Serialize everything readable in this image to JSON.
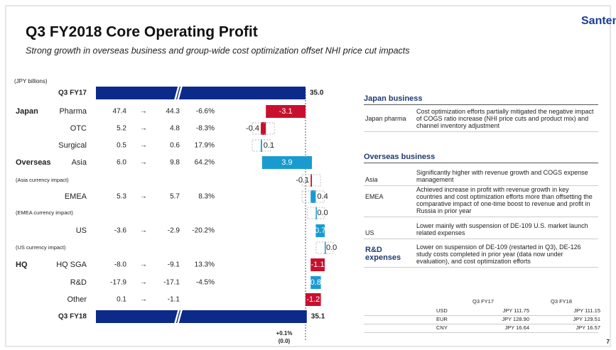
{
  "logo": "Santen",
  "title": "Q3 FY2018 Core Operating Profit",
  "subtitle": "Strong growth in overseas business and group-wide cost optimization offset NHI price cut impacts",
  "unit": "(JPY billions)",
  "start": {
    "label": "Q3 FY17",
    "value": 35,
    "value_label": "35.0"
  },
  "end": {
    "label": "Q3 FY18",
    "value": 35.1,
    "value_label": "35.1"
  },
  "rows": [
    {
      "group": "Japan",
      "label": "Pharma",
      "prev": "47.4",
      "arrow": "→",
      "curr": "44.3",
      "pct": "-6.6%",
      "change": -3.1,
      "change_label": "-3.1"
    },
    {
      "label": "OTC",
      "prev": "5.2",
      "arrow": "→",
      "curr": "4.8",
      "pct": "-8.3%",
      "change": -0.4,
      "change_label": "-0.4"
    },
    {
      "label": "Surgical",
      "prev": "0.5",
      "arrow": "→",
      "curr": "0.6",
      "pct": "17.9%",
      "change": 0.1,
      "change_label": "0.1"
    },
    {
      "group": "Overseas",
      "label": "Asia",
      "prev": "6.0",
      "arrow": "→",
      "curr": "9.8",
      "pct": "64.2%",
      "change": 3.9,
      "change_label": "3.9"
    },
    {
      "sublabel": "(Asia currency impact)",
      "change": -0.1,
      "change_label": "-0.1"
    },
    {
      "label": "EMEA",
      "prev": "5.3",
      "arrow": "→",
      "curr": "5.7",
      "pct": "8.3%",
      "change": 0.4,
      "change_label": "0.4"
    },
    {
      "sublabel": "(EMEA currency impact)",
      "change": 0,
      "change_label": "0.0"
    },
    {
      "label": "US",
      "prev": "-3.6",
      "arrow": "→",
      "curr": "-2.9",
      "pct": "-20.2%",
      "change": 0.7,
      "change_label": "0.7"
    },
    {
      "sublabel": "(US currency impact)",
      "change": 0,
      "change_label": "0.0"
    },
    {
      "group": "HQ",
      "label": "HQ SGA",
      "prev": "-8.0",
      "arrow": "→",
      "curr": "-9.1",
      "pct": "13.3%",
      "change": -1.1,
      "change_label": "-1.1"
    },
    {
      "label": "R&D",
      "prev": "-17.9",
      "arrow": "→",
      "curr": "-17.1",
      "pct": "-4.5%",
      "change": 0.8,
      "change_label": "0.8"
    },
    {
      "label": "Other",
      "prev": "0.1",
      "arrow": "→",
      "curr": "-1.1",
      "change": -1.2,
      "change_label": "-1.2"
    }
  ],
  "footer": [
    "+0.1%",
    "(0.0)"
  ],
  "sections": [
    {
      "header": "Japan business",
      "items": [
        {
          "label": "Japan pharma",
          "text": "Cost optimization efforts partially mitigated the negative impact of COGS ratio increase (NHI price cuts and product mix) and channel inventory adjustment"
        }
      ]
    },
    {
      "header": "Overseas business",
      "items": [
        {
          "label": "Asia",
          "text": "Significantly higher with revenue growth and COGS expense management"
        },
        {
          "label": "EMEA",
          "text": "Achieved increase in profit with revenue growth in key countries and cost optimization efforts more than offsetting the comparative impact of one-time boost to revenue and profit in Russia in prior year"
        },
        {
          "label": "US",
          "text": "Lower mainly with suspension of DE-109 U.S. market launch related expenses"
        }
      ]
    },
    {
      "items": [
        {
          "label": "R&D expenses",
          "text": "Lower on suspension of DE-109 (restarted in Q3), DE-126 study costs completed in prior year (data now under evaluation), and cost optimization efforts"
        }
      ]
    }
  ],
  "fx": {
    "columns": [
      "Q3 FY17",
      "Q3 FY18"
    ],
    "rows": [
      [
        "USD",
        "JPY 111.75",
        "JPY 111.15"
      ],
      [
        "EUR",
        "JPY 128.90",
        "JPY 129.51"
      ],
      [
        "CNY",
        "JPY 16.64",
        "JPY 16.57"
      ]
    ]
  },
  "page": "7"
}
